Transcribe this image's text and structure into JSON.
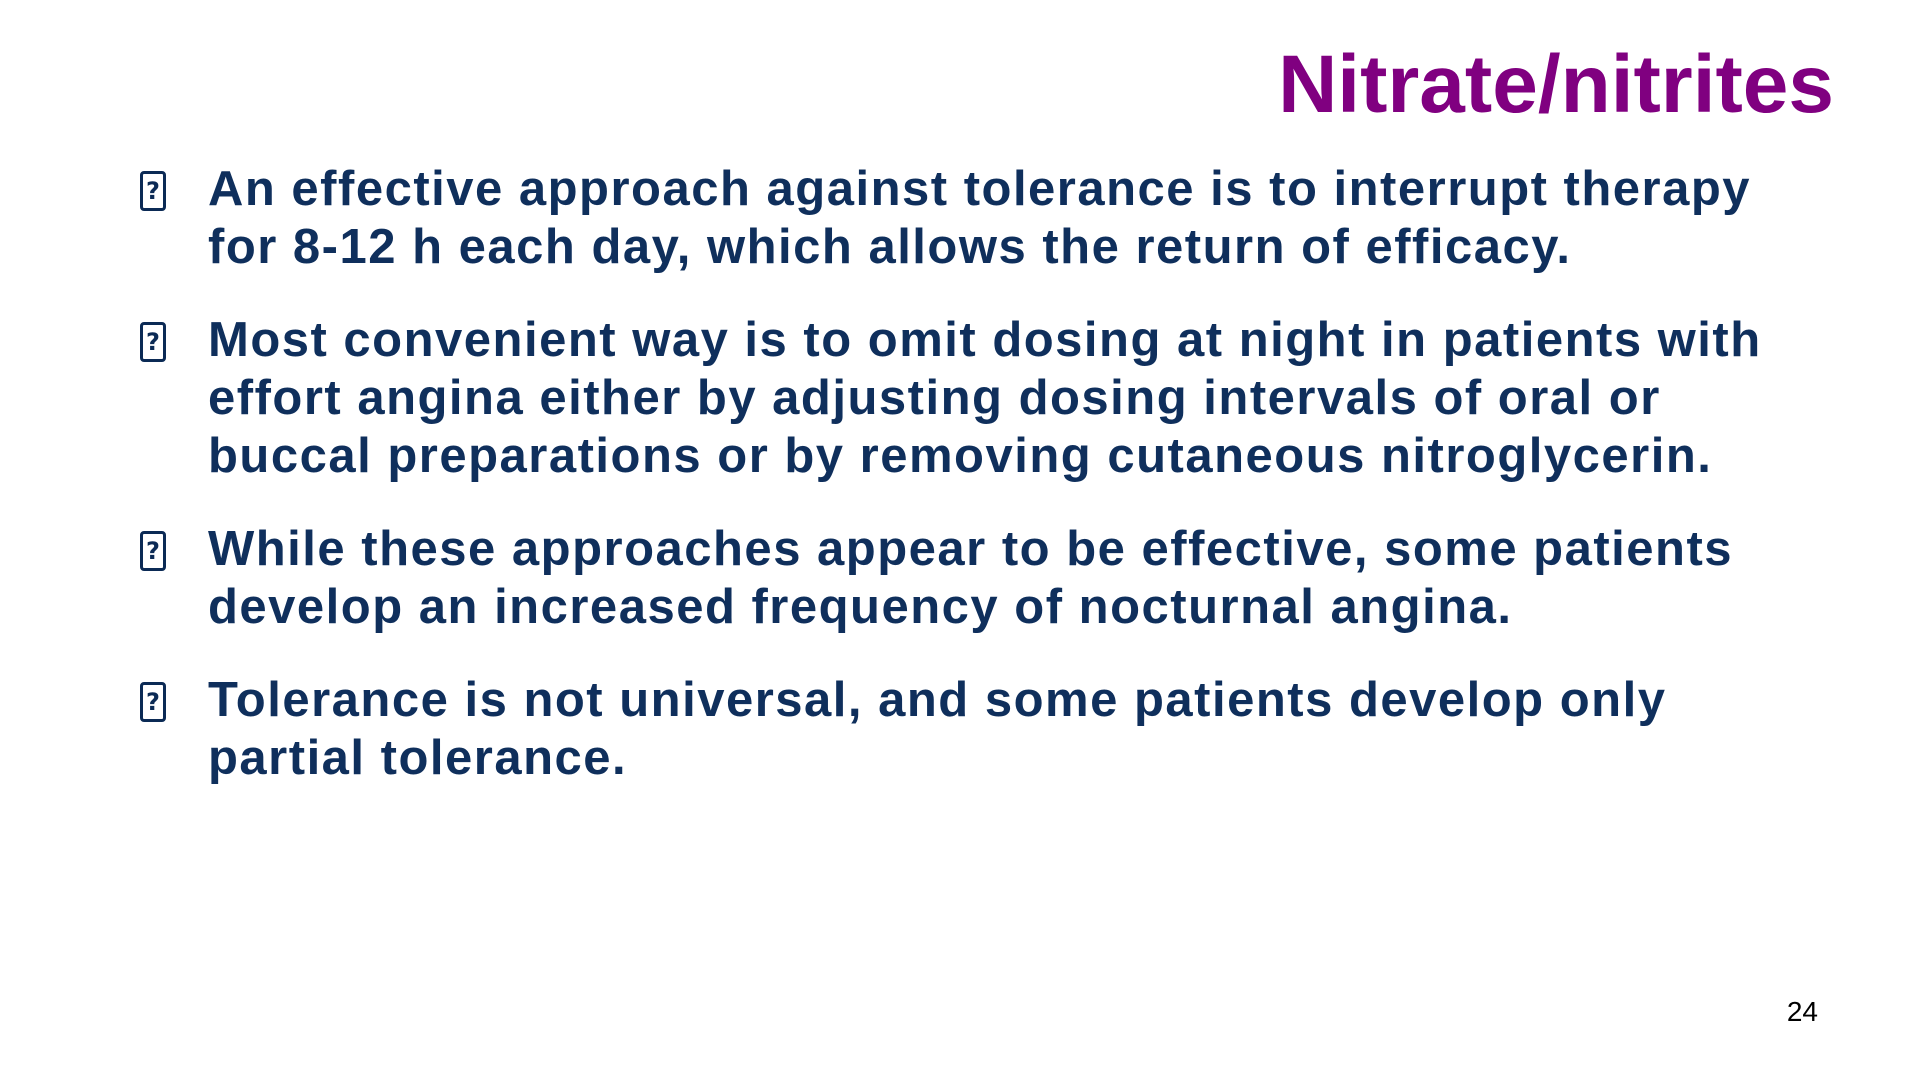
{
  "slide": {
    "title": "Nitrate/nitrites",
    "bullet_icon": "?",
    "bullets": [
      "An effective approach against tolerance is to interrupt therapy for 8-12 h each day, which allows the return of efficacy.",
      "Most convenient way is to omit dosing at night in patients with effort angina either by adjusting dosing intervals of oral or buccal preparations or by removing cutaneous nitroglycerin.",
      "While these approaches appear to be effective, some patients develop an increased frequency of nocturnal angina.",
      "Tolerance is not universal, and some patients develop only partial tolerance."
    ],
    "page_number": "24"
  },
  "colors": {
    "title": "#800080",
    "body_text": "#0f2f5c",
    "background": "#ffffff"
  }
}
